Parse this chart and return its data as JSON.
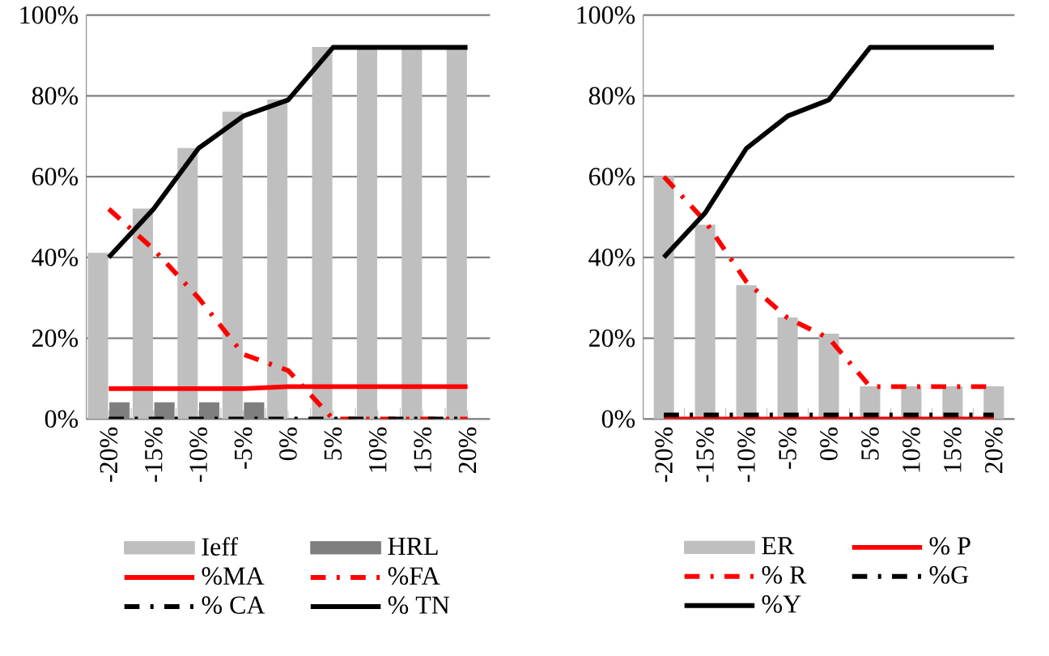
{
  "chart_data": [
    {
      "type": "bar",
      "categories": [
        "-20%",
        "-15%",
        "-10%",
        "-5%",
        "0%",
        "5%",
        "10%",
        "15%",
        "20%"
      ],
      "ylim": [
        0,
        100
      ],
      "yticks": [
        {
          "value": 0,
          "label": "0%"
        },
        {
          "value": 20,
          "label": "20%"
        },
        {
          "value": 40,
          "label": "40%"
        },
        {
          "value": 60,
          "label": "60%"
        },
        {
          "value": 80,
          "label": "80%"
        },
        {
          "value": 100,
          "label": "100%"
        }
      ],
      "grid": "y",
      "legend": "bottom",
      "series": [
        {
          "name": "Ieff",
          "color": "#bfbfbf",
          "values": [
            41,
            52,
            67,
            76,
            79,
            92,
            92,
            92,
            92
          ]
        },
        {
          "name": "HRL",
          "color": "#7f7f7f",
          "values": [
            4,
            4,
            4,
            4,
            0,
            0,
            0,
            0,
            0
          ]
        },
        {
          "name": "%MA",
          "type": "line",
          "color": "#ff0000",
          "line_style": "solid",
          "values": [
            7.5,
            7.5,
            7.5,
            7.5,
            8,
            8,
            8,
            8,
            8
          ]
        },
        {
          "name": "%FA",
          "type": "line",
          "color": "#ff0000",
          "line_style": "dashed",
          "values": [
            52,
            42,
            30,
            16,
            12,
            0,
            0,
            0,
            0
          ]
        },
        {
          "name": "% CA",
          "type": "line",
          "color": "#000000",
          "line_style": "dashed",
          "values": [
            0,
            0,
            0,
            0,
            0,
            0,
            0,
            0,
            0
          ]
        },
        {
          "name": "% TN",
          "type": "line",
          "color": "#000000",
          "line_style": "solid",
          "values": [
            40,
            52,
            67,
            75,
            79,
            92,
            92,
            92,
            92
          ]
        }
      ]
    },
    {
      "type": "bar",
      "categories": [
        "-20%",
        "-15%",
        "-10%",
        "-5%",
        "0%",
        "5%",
        "10%",
        "15%",
        "20%"
      ],
      "ylim": [
        0,
        100
      ],
      "yticks": [
        {
          "value": 0,
          "label": "0%"
        },
        {
          "value": 20,
          "label": "20%"
        },
        {
          "value": 40,
          "label": "40%"
        },
        {
          "value": 60,
          "label": "60%"
        },
        {
          "value": 80,
          "label": "80%"
        },
        {
          "value": 100,
          "label": "100%"
        }
      ],
      "grid": "y",
      "legend": "bottom",
      "series": [
        {
          "name": "ER",
          "color": "#bfbfbf",
          "values": [
            60,
            48,
            33,
            25,
            21,
            8,
            8,
            8,
            8
          ]
        },
        {
          "name": "% P",
          "type": "line",
          "color": "#ff0000",
          "line_style": "solid",
          "values": [
            0,
            0,
            0,
            0,
            0,
            0,
            0,
            0,
            0
          ]
        },
        {
          "name": "% R",
          "type": "line",
          "color": "#ff0000",
          "line_style": "dashed",
          "values": [
            60,
            49,
            34,
            25,
            20,
            8,
            8,
            8,
            8
          ]
        },
        {
          "name": "%G",
          "type": "line",
          "color": "#000000",
          "line_style": "dashed",
          "values": [
            1,
            1,
            1,
            1,
            1,
            1,
            1,
            1,
            1
          ]
        },
        {
          "name": "%Y",
          "type": "line",
          "color": "#000000",
          "line_style": "solid",
          "values": [
            40,
            51,
            67,
            75,
            79,
            92,
            92,
            92,
            92
          ]
        }
      ]
    }
  ]
}
